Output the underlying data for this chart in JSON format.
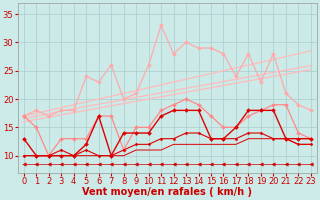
{
  "x": [
    0,
    1,
    2,
    3,
    4,
    5,
    6,
    7,
    8,
    9,
    10,
    11,
    12,
    13,
    14,
    15,
    16,
    17,
    18,
    19,
    20,
    21,
    22,
    23
  ],
  "bg_color": "#cceae8",
  "grid_color": "#aacccc",
  "xlabel": "Vent moyen/en rafales ( km/h )",
  "xlabel_color": "#cc0000",
  "xlabel_fontsize": 7,
  "tick_color": "#cc0000",
  "tick_fontsize": 6,
  "ylim": [
    7,
    37
  ],
  "yticks": [
    10,
    15,
    20,
    25,
    30,
    35
  ],
  "lines": [
    {
      "y": [
        17.0,
        17.5,
        18.0,
        18.5,
        19.0,
        19.5,
        20.0,
        20.5,
        21.0,
        21.5,
        22.0,
        22.5,
        23.0,
        23.5,
        24.0,
        24.5,
        25.0,
        25.5,
        26.0,
        26.5,
        27.0,
        27.5,
        28.0,
        28.5
      ],
      "color": "#ffbbbb",
      "lw": 0.9,
      "marker": null,
      "ms": 0
    },
    {
      "y": [
        16.5,
        17.0,
        17.4,
        17.9,
        18.3,
        18.7,
        19.1,
        19.5,
        19.9,
        20.3,
        20.7,
        21.1,
        21.5,
        21.9,
        22.3,
        22.7,
        23.1,
        23.5,
        23.9,
        24.3,
        24.7,
        25.1,
        25.5,
        25.9
      ],
      "color": "#ffbbbb",
      "lw": 0.9,
      "marker": null,
      "ms": 0
    },
    {
      "y": [
        16.0,
        16.4,
        16.8,
        17.2,
        17.6,
        18.0,
        18.4,
        18.8,
        19.2,
        19.6,
        20.0,
        20.4,
        20.8,
        21.2,
        21.6,
        22.0,
        22.4,
        22.8,
        23.2,
        23.6,
        24.0,
        24.4,
        24.8,
        25.2
      ],
      "color": "#ffbbbb",
      "lw": 0.9,
      "marker": null,
      "ms": 0
    },
    {
      "y": [
        17,
        18,
        17,
        18,
        18,
        24,
        23,
        26,
        20,
        21,
        26,
        33,
        28,
        30,
        29,
        29,
        28,
        24,
        28,
        23,
        28,
        21,
        19,
        18
      ],
      "color": "#ffaaaa",
      "lw": 0.9,
      "marker": "D",
      "ms": 2.0
    },
    {
      "y": [
        17,
        15,
        10,
        13,
        13,
        13,
        17,
        17,
        11,
        15,
        15,
        18,
        19,
        20,
        19,
        17,
        15,
        15,
        17,
        18,
        19,
        19,
        14,
        13
      ],
      "color": "#ff8888",
      "lw": 0.9,
      "marker": "D",
      "ms": 2.0
    },
    {
      "y": [
        13,
        10,
        10,
        10,
        10,
        12,
        17,
        10,
        14,
        14,
        14,
        17,
        18,
        18,
        18,
        13,
        13,
        15,
        18,
        18,
        18,
        13,
        13,
        13
      ],
      "color": "#dd0000",
      "lw": 1.0,
      "marker": "D",
      "ms": 2.0
    },
    {
      "y": [
        10,
        10,
        10,
        11,
        10,
        11,
        10,
        10,
        11,
        12,
        12,
        13,
        13,
        14,
        14,
        13,
        13,
        13,
        14,
        14,
        13,
        13,
        12,
        12
      ],
      "color": "#dd0000",
      "lw": 0.8,
      "marker": "D",
      "ms": 1.5
    },
    {
      "y": [
        10,
        10,
        10,
        10,
        10,
        10,
        10,
        10,
        10,
        11,
        11,
        11,
        12,
        12,
        12,
        12,
        12,
        12,
        13,
        13,
        13,
        13,
        12,
        12
      ],
      "color": "#dd0000",
      "lw": 0.7,
      "marker": null,
      "ms": 0
    },
    {
      "y": [
        8.5,
        8.5,
        8.5,
        8.5,
        8.5,
        8.5,
        8.5,
        8.5,
        8.5,
        8.5,
        8.5,
        8.5,
        8.5,
        8.5,
        8.5,
        8.5,
        8.5,
        8.5,
        8.5,
        8.5,
        8.5,
        8.5,
        8.5,
        8.5
      ],
      "color": "#cc0000",
      "lw": 0.5,
      "marker": "<",
      "ms": 2.5
    }
  ]
}
